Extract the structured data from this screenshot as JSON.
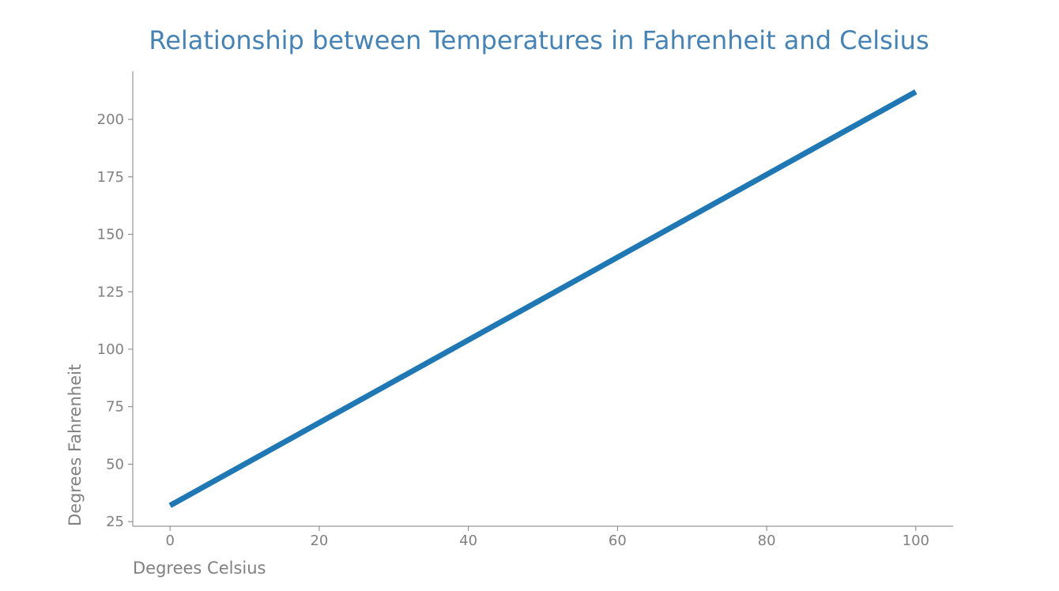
{
  "chart_data": {
    "type": "line",
    "title": "Relationship between Temperatures in Fahrenheit and Celsius",
    "xlabel": "Degrees Celsius",
    "ylabel": "Degrees Fahrenheit",
    "x": [
      0,
      100
    ],
    "series": [
      {
        "values": [
          32,
          212
        ],
        "color": "#1f77b4"
      }
    ],
    "xlim": [
      -5,
      105
    ],
    "ylim": [
      23,
      221
    ],
    "xticks": [
      "0",
      "20",
      "40",
      "60",
      "80",
      "100"
    ],
    "yticks": [
      "25",
      "50",
      "75",
      "100",
      "125",
      "150",
      "175",
      "200"
    ],
    "grid": false,
    "legend": "none"
  },
  "colors": {
    "title": "#4682b4",
    "axis": "#808080",
    "line": "#1f77b4"
  }
}
